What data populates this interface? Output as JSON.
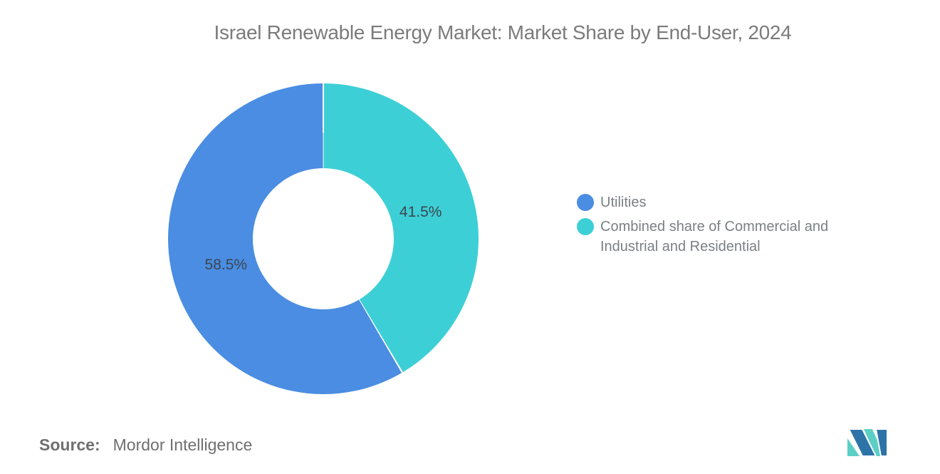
{
  "title": "Israel Renewable Energy Market: Market Share by End-User, 2024",
  "chart_data": {
    "type": "pie",
    "subtype": "donut",
    "title": "Israel Renewable Energy Market: Market Share by End-User, 2024",
    "unit": "%",
    "categories": [
      "Utilities",
      "Combined share of Commercial and Industrial and Residential"
    ],
    "values": [
      58.5,
      41.5
    ],
    "segments_clockwise_from_top": [
      {
        "label": "Combined share of Commercial and Industrial and Residential",
        "value": 41.5,
        "pct_label": "41.5%",
        "color": "#3dcfd6"
      },
      {
        "label": "Utilities",
        "value": 58.5,
        "pct_label": "58.5%",
        "color": "#4a8de2"
      }
    ],
    "legend": [
      {
        "label": "Utilities",
        "color": "#4a8de2"
      },
      {
        "label": "Combined share of Commercial and Industrial and Residential",
        "color": "#3dcfd6"
      }
    ],
    "legend_position": "right",
    "labels_inside": true,
    "start_angle_deg": 0,
    "direction": "clockwise",
    "hole_ratio": 0.455,
    "label_radius_ratio": 0.65,
    "label_color": "#3c4650"
  },
  "footer": {
    "source_label": "Source:",
    "source_value": "Mordor Intelligence",
    "logo_icon": "mordor-intelligence-logo"
  },
  "colors": {
    "background": "#ffffff",
    "title_text": "#7b7b7b",
    "legend_text": "#7a8084",
    "source_text": "#6f6f6f",
    "logo_blue": "#2c73a8",
    "logo_teal": "#5bcfc5"
  }
}
